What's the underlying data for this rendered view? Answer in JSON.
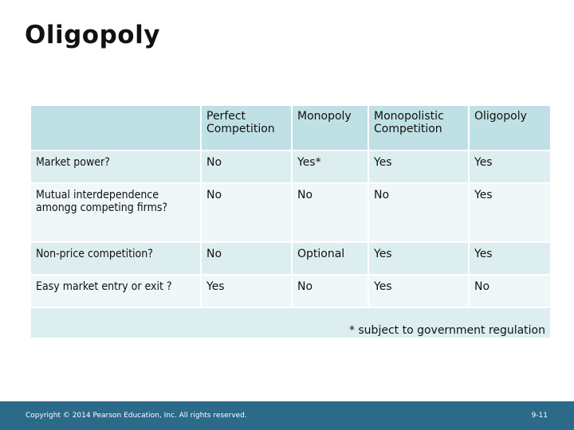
{
  "title": "Oligopoly",
  "table": {
    "headers": [
      "",
      "Perfect Competition",
      "Monopoly",
      "Monopolistic Competition",
      "Oligopoly"
    ],
    "rows": [
      [
        "Market power?",
        "No",
        "Yes*",
        "Yes",
        "Yes"
      ],
      [
        "Mutual interdependence amongg competing firms?",
        "No",
        "No",
        "No",
        "Yes"
      ],
      [
        "Non-price competition?",
        "No",
        "Optional",
        "Yes",
        "Yes"
      ],
      [
        "Easy market entry or exit ?",
        "Yes",
        "No",
        "Yes",
        "No"
      ]
    ],
    "footnote": "* subject to government regulation"
  },
  "footer": {
    "copyright": "Copyright © 2014 Pearson Education, Inc. All rights reserved.",
    "page": "9-11"
  },
  "colors": {
    "header_fill": "#bfe0e4",
    "row_fill_dark": "#ddeef0",
    "row_fill_light": "#f0f7f8",
    "footer_bar": "#2b6a89"
  }
}
